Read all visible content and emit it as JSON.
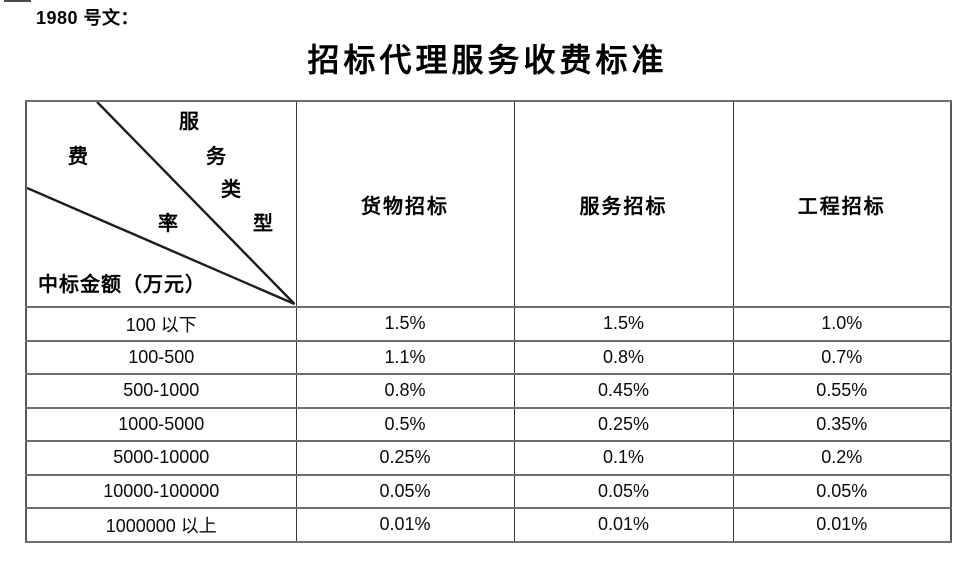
{
  "page": {
    "doc_ref": "1980 号文："
  },
  "title": "招标代理服务收费标准",
  "table": {
    "corner": {
      "service_type_chars": [
        "服",
        "务",
        "类",
        "型"
      ],
      "fee_rate_chars": [
        "费",
        "率"
      ],
      "amount_label": "中标金额（万元）"
    },
    "column_headers": [
      "货物招标",
      "服务招标",
      "工程招标"
    ],
    "rows": [
      {
        "range": "100 以下",
        "values": [
          "1.5%",
          "1.5%",
          "1.0%"
        ]
      },
      {
        "range": "100-500",
        "values": [
          "1.1%",
          "0.8%",
          "0.7%"
        ]
      },
      {
        "range": "500-1000",
        "values": [
          "0.8%",
          "0.45%",
          "0.55%"
        ]
      },
      {
        "range": "1000-5000",
        "values": [
          "0.5%",
          "0.25%",
          "0.35%"
        ]
      },
      {
        "range": "5000-10000",
        "values": [
          "0.25%",
          "0.1%",
          "0.2%"
        ]
      },
      {
        "range": "10000-100000",
        "values": [
          "0.05%",
          "0.05%",
          "0.05%"
        ]
      },
      {
        "range": "1000000 以上",
        "values": [
          "0.01%",
          "0.01%",
          "0.01%"
        ]
      }
    ]
  },
  "colors": {
    "outer_border": "#595959",
    "horizontal_rule": "#6e6e6e",
    "vertical_rule": "#383838",
    "diagonal_line": "#1c1c1c",
    "text": "#000000"
  }
}
